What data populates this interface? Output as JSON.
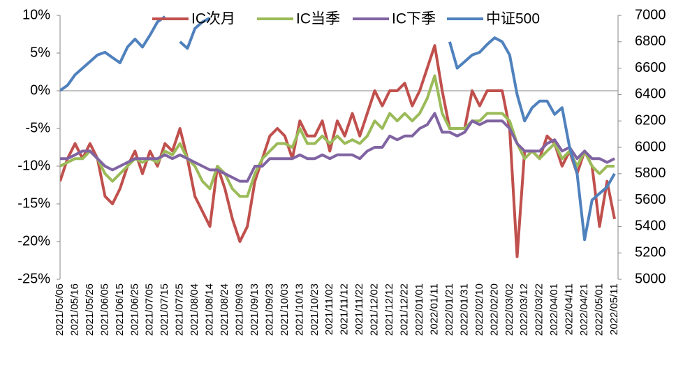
{
  "chart_data": {
    "type": "line",
    "categories": [
      "2021/05/06",
      null,
      "2021/05/16",
      null,
      "2021/05/26",
      null,
      "2021/06/05",
      null,
      "2021/06/15",
      null,
      "2021/06/25",
      null,
      "2021/07/05",
      null,
      "2021/07/15",
      null,
      "2021/07/25",
      null,
      "2021/08/04",
      null,
      "2021/08/14",
      null,
      "2021/08/24",
      null,
      "2021/09/03",
      null,
      "2021/09/13",
      null,
      "2021/09/23",
      null,
      "2021/10/03",
      null,
      "2021/10/13",
      null,
      "2021/10/23",
      null,
      "2021/11/02",
      null,
      "2021/11/12",
      null,
      "2021/11/22",
      null,
      "2021/12/02",
      null,
      "2021/12/12",
      null,
      "2021/12/22",
      null,
      "2022/01/01",
      null,
      "2022/01/11",
      null,
      "2022/01/21",
      null,
      "2022/01/31",
      null,
      "2022/02/10",
      null,
      "2022/02/20",
      null,
      "2022/03/02",
      null,
      "2022/03/12",
      null,
      "2022/03/22",
      null,
      "2022/04/01",
      null,
      "2022/04/11",
      null,
      "2022/04/21",
      null,
      "2022/05/01",
      null,
      "2022/05/11"
    ],
    "series": [
      {
        "name": "IC次月",
        "color": "#c0504d",
        "values": [
          -12,
          -9,
          -7,
          -9,
          -7,
          -9,
          -14,
          -15,
          -13,
          -10,
          -8,
          -11,
          -8,
          -10,
          -7,
          -8,
          -5,
          -9,
          -14,
          -16,
          -18,
          -10,
          -13,
          -17,
          -20,
          -18,
          -12,
          -9,
          -6,
          -5,
          -6,
          -9,
          -4,
          -6,
          -6,
          -4,
          -8,
          -4,
          -6,
          -3,
          -6,
          -3,
          0,
          -2,
          0,
          0,
          1,
          -2,
          0,
          3,
          6,
          0,
          -5,
          -5,
          -5,
          0,
          -2,
          0,
          0,
          0,
          -5,
          -22,
          -8,
          -8,
          -9,
          -6,
          -7,
          -10,
          -8,
          -11,
          -8,
          -10,
          -18,
          -12,
          -17
        ]
      },
      {
        "name": "IC当季",
        "color": "#9bbb59",
        "values": [
          -10,
          -9.5,
          -9,
          -9,
          -8,
          -9,
          -11,
          -12,
          -11,
          -10,
          -9,
          -9.5,
          -9,
          -9.5,
          -8,
          -8.5,
          -7,
          -9,
          -10,
          -12,
          -13,
          -10,
          -11,
          -13,
          -14,
          -14,
          -11,
          -9,
          -8,
          -7,
          -7,
          -7.5,
          -5,
          -7,
          -7,
          -6,
          -7,
          -6,
          -7,
          -6.5,
          -7,
          -6,
          -4,
          -5,
          -3,
          -4,
          -3,
          -4,
          -3,
          -1,
          2,
          -3,
          -5,
          -5,
          -5,
          -4,
          -4,
          -3,
          -3,
          -3,
          -4,
          -7,
          -9,
          -8,
          -9,
          -8,
          -7,
          -9,
          -8,
          -10,
          -8,
          -10,
          -11,
          -10,
          -10
        ]
      },
      {
        "name": "IC下季",
        "color": "#8064a2",
        "values": [
          -9,
          -9,
          -8.5,
          -8,
          -8,
          -9,
          -10,
          -10.5,
          -10,
          -9.5,
          -9,
          -9,
          -9,
          -9,
          -8.5,
          -9,
          -8.5,
          -9,
          -9.5,
          -10,
          -10.5,
          -10.5,
          -11,
          -11.5,
          -12,
          -12,
          -10,
          -10,
          -9,
          -9,
          -9,
          -9,
          -8.5,
          -9,
          -9,
          -8.5,
          -9,
          -8.5,
          -8.5,
          -8.5,
          -9,
          -8,
          -7.5,
          -7.5,
          -6,
          -6.5,
          -6,
          -6,
          -5,
          -4.5,
          -3,
          -5.5,
          -5.5,
          -6,
          -5.5,
          -4,
          -4.5,
          -4,
          -4,
          -4,
          -5,
          -7,
          -8,
          -8,
          -8,
          -7,
          -6.5,
          -8,
          -7.5,
          -9,
          -8,
          -9,
          -9,
          -9.5,
          -9
        ]
      },
      {
        "name": "中证500",
        "color": "#4f81bd",
        "axis": "y2",
        "values": [
          6430,
          6470,
          6550,
          6600,
          6650,
          6700,
          6720,
          6680,
          6640,
          6760,
          6820,
          6760,
          6850,
          6950,
          6990,
          null,
          6800,
          6750,
          6900,
          6950,
          6980,
          null,
          null,
          null,
          null,
          null,
          null,
          null,
          null,
          null,
          null,
          null,
          null,
          null,
          null,
          null,
          null,
          null,
          null,
          null,
          null,
          null,
          null,
          null,
          null,
          null,
          null,
          null,
          null,
          null,
          null,
          null,
          6800,
          6600,
          6650,
          6700,
          6720,
          6780,
          6830,
          6800,
          6700,
          6400,
          6200,
          6300,
          6350,
          6350,
          6250,
          6300,
          6000,
          5800,
          5300,
          5600,
          5650,
          5700,
          5800
        ]
      }
    ],
    "ylim": [
      -25,
      10
    ],
    "yticks": [
      {
        "value": -25,
        "label": "-25%"
      },
      {
        "value": -20,
        "label": "-20%"
      },
      {
        "value": -15,
        "label": "-15%"
      },
      {
        "value": -10,
        "label": "-10%"
      },
      {
        "value": -5,
        "label": "-5%"
      },
      {
        "value": 0,
        "label": "0%"
      },
      {
        "value": 5,
        "label": "5%"
      },
      {
        "value": 10,
        "label": "10%"
      }
    ],
    "y2lim": [
      5000,
      7000
    ],
    "y2ticks": [
      5000,
      5200,
      5400,
      5600,
      5800,
      6000,
      6200,
      6400,
      6600,
      6800,
      7000
    ],
    "legend": "top"
  }
}
